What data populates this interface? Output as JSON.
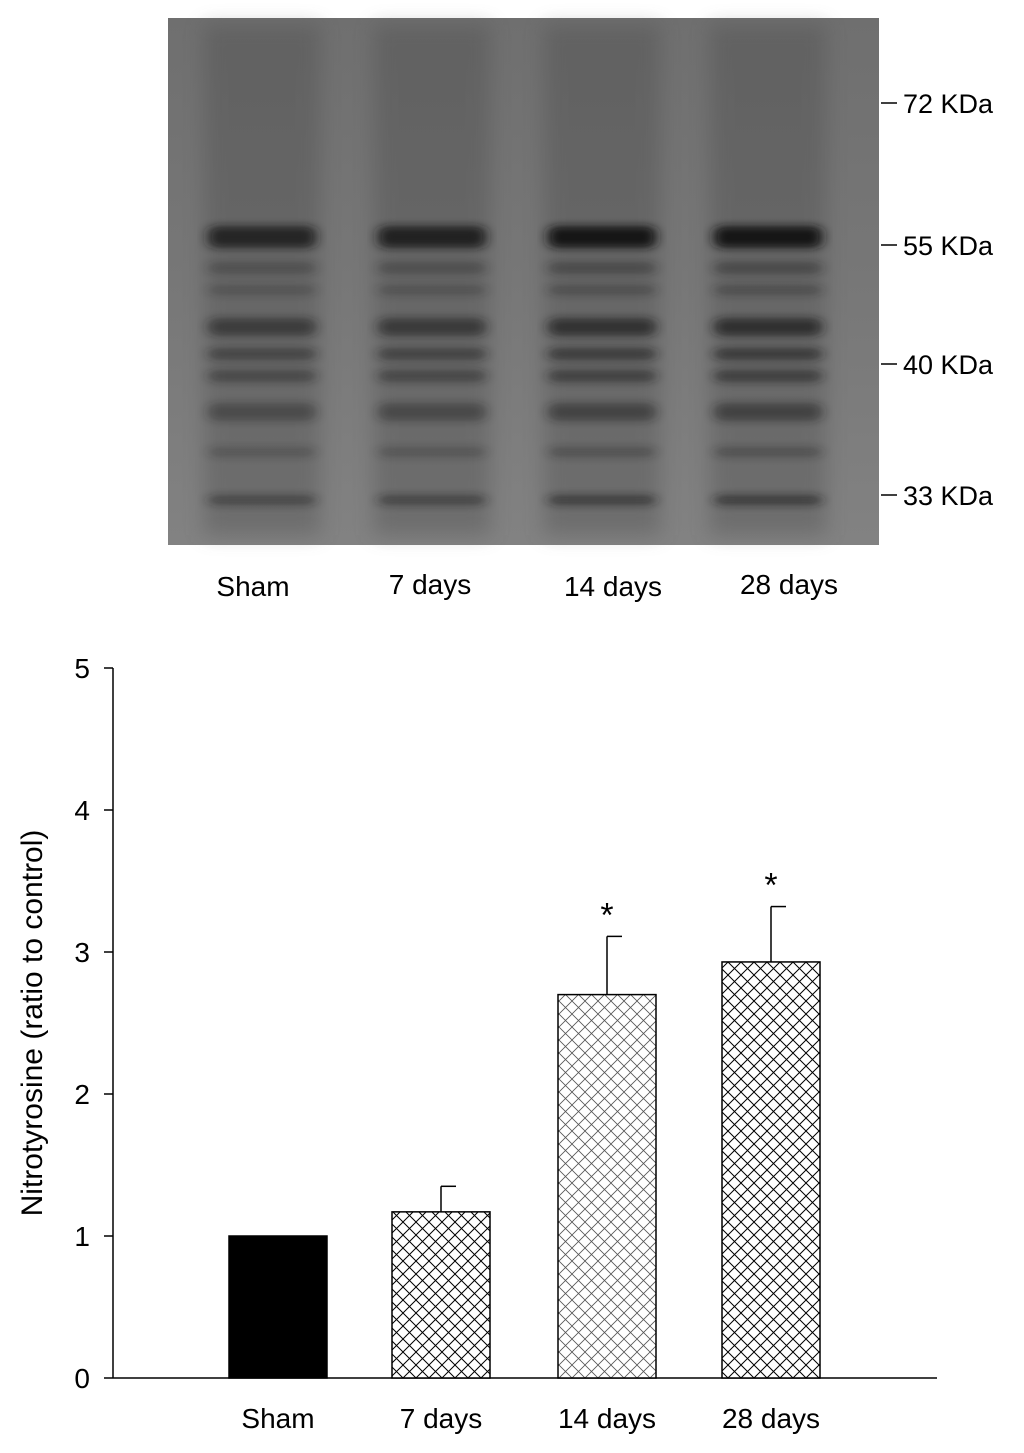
{
  "blot": {
    "markers": [
      "72 KDa",
      "55 KDa",
      "40 KDa",
      "33 KDa"
    ],
    "lanes": [
      "Sham",
      "7 days",
      "14 days",
      "28 days"
    ]
  },
  "chart_data": {
    "type": "bar",
    "categories": [
      "Sham",
      "7 days",
      "14 days",
      "28 days"
    ],
    "values": [
      1.0,
      1.17,
      2.7,
      2.93
    ],
    "errors": [
      0,
      0.18,
      0.41,
      0.39
    ],
    "significance": [
      "",
      "",
      "*",
      "*"
    ],
    "fills": [
      "solid",
      "crosshatch",
      "crosshatch-light",
      "crosshatch"
    ],
    "ylabel": "Nitrotyrosine (ratio to control)",
    "xlabel": "",
    "ylim": [
      0,
      5
    ],
    "yticks": [
      0,
      1,
      2,
      3,
      4,
      5
    ],
    "grid": false,
    "colors": {
      "bar_solid": "#000000",
      "hatch": "#000000",
      "background": "#ffffff"
    }
  }
}
